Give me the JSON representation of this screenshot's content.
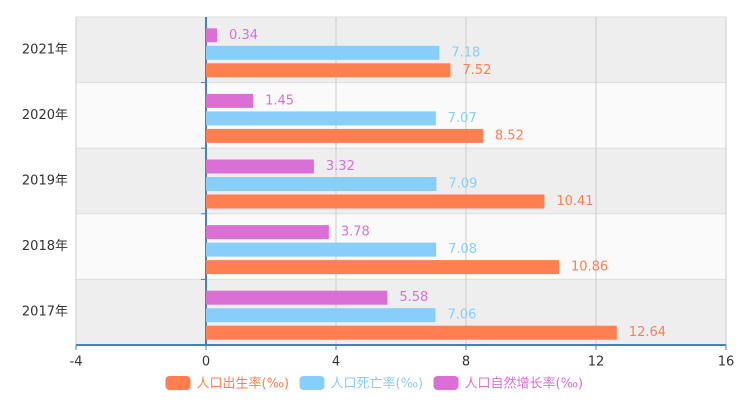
{
  "chart_data": {
    "type": "bar",
    "orientation": "horizontal",
    "categories": [
      "2017年",
      "2018年",
      "2019年",
      "2020年",
      "2021年"
    ],
    "series": [
      {
        "name": "人口出生率(‰)",
        "color": "#ff7f50",
        "values": [
          12.64,
          10.86,
          10.41,
          8.52,
          7.52
        ]
      },
      {
        "name": "人口死亡率(‰)",
        "color": "#87cefa",
        "values": [
          7.06,
          7.08,
          7.09,
          7.07,
          7.18
        ]
      },
      {
        "name": "人口自然增长率(‰)",
        "color": "#da70d6",
        "values": [
          5.58,
          3.78,
          3.32,
          1.45,
          0.34
        ]
      }
    ],
    "xlim": [
      -4,
      16
    ],
    "xticks": [
      -4,
      0,
      4,
      8,
      12,
      16
    ],
    "grid": true,
    "legend": "bottom"
  }
}
